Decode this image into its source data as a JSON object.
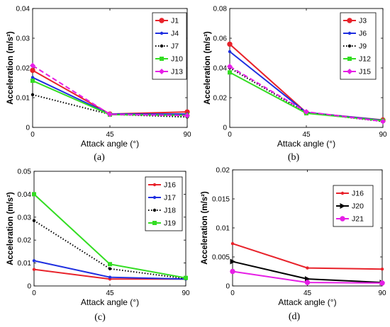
{
  "chart_data": [
    {
      "type": "line",
      "caption": "(a)",
      "xlabel": "Attack angle (°)",
      "ylabel": "Acceleration (m/s²)",
      "x": [
        0,
        45,
        90
      ],
      "xticks": [
        "0",
        "45",
        "90"
      ],
      "ylim": [
        0,
        0.04
      ],
      "yticks": [
        "0",
        "0.01",
        "0.02",
        "0.03",
        "0.04"
      ],
      "legend_position": "top-right",
      "series": [
        {
          "name": "J1",
          "values": [
            0.0192,
            0.0045,
            0.0052
          ],
          "color": "#e8222a",
          "dash": "solid",
          "marker": "circle"
        },
        {
          "name": "J4",
          "values": [
            0.0168,
            0.0045,
            0.0045
          ],
          "color": "#1f2fe0",
          "dash": "solid",
          "marker": "dot"
        },
        {
          "name": "J7",
          "values": [
            0.011,
            0.0044,
            0.0035
          ],
          "color": "#000000",
          "dash": "dot",
          "marker": "dot"
        },
        {
          "name": "J10",
          "values": [
            0.0157,
            0.0043,
            0.0041
          ],
          "color": "#33dd22",
          "dash": "solid",
          "marker": "square"
        },
        {
          "name": "J13",
          "values": [
            0.0208,
            0.0044,
            0.004
          ],
          "color": "#e61ee6",
          "dash": "dash",
          "marker": "diamond"
        }
      ]
    },
    {
      "type": "line",
      "caption": "(b)",
      "xlabel": "Attack angle (°)",
      "ylabel": "Acceleration (m/s²)",
      "x": [
        0,
        45,
        90
      ],
      "xticks": [
        "0",
        "45",
        "90"
      ],
      "ylim": [
        0,
        0.08
      ],
      "yticks": [
        "0",
        "0.02",
        "0.04",
        "0.06",
        "0.08"
      ],
      "legend_position": "top-right",
      "series": [
        {
          "name": "J3",
          "values": [
            0.056,
            0.01,
            0.005
          ],
          "color": "#e8222a",
          "dash": "solid",
          "marker": "circle"
        },
        {
          "name": "J6",
          "values": [
            0.051,
            0.01,
            0.0048
          ],
          "color": "#1f2fe0",
          "dash": "solid",
          "marker": "dot"
        },
        {
          "name": "J9",
          "values": [
            0.04,
            0.01,
            0.004
          ],
          "color": "#000000",
          "dash": "dot",
          "marker": "dot"
        },
        {
          "name": "J12",
          "values": [
            0.037,
            0.0095,
            0.0045
          ],
          "color": "#33dd22",
          "dash": "solid",
          "marker": "square"
        },
        {
          "name": "J15",
          "values": [
            0.041,
            0.0105,
            0.004
          ],
          "color": "#e61ee6",
          "dash": "dash",
          "marker": "diamond"
        }
      ]
    },
    {
      "type": "line",
      "caption": "(c)",
      "xlabel": "Attack angle (°)",
      "ylabel": "Acceleration (m/s²)",
      "x": [
        0,
        45,
        90
      ],
      "xticks": [
        "0",
        "45",
        "90"
      ],
      "ylim": [
        0,
        0.05
      ],
      "yticks": [
        "0",
        "0.01",
        "0.02",
        "0.03",
        "0.04",
        "0.05"
      ],
      "legend_position": "top-right",
      "series": [
        {
          "name": "J16",
          "values": [
            0.0072,
            0.003,
            0.003
          ],
          "color": "#e8222a",
          "dash": "solid",
          "marker": "dot"
        },
        {
          "name": "J17",
          "values": [
            0.011,
            0.0038,
            0.003
          ],
          "color": "#1f2fe0",
          "dash": "solid",
          "marker": "dot"
        },
        {
          "name": "J18",
          "values": [
            0.0285,
            0.0075,
            0.0032
          ],
          "color": "#000000",
          "dash": "dot",
          "marker": "dot"
        },
        {
          "name": "J19",
          "values": [
            0.04,
            0.0095,
            0.0035
          ],
          "color": "#33dd22",
          "dash": "solid",
          "marker": "square"
        }
      ]
    },
    {
      "type": "line",
      "caption": "(d)",
      "xlabel": "Attack angle (°)",
      "ylabel": "Acceleration (m/s²)",
      "x": [
        0,
        45,
        90
      ],
      "xticks": [
        "0",
        "45",
        "90"
      ],
      "ylim": [
        0,
        0.02
      ],
      "yticks": [
        "0",
        "0.005",
        "0.01",
        "0.015",
        "0.02"
      ],
      "legend_position": "top-right",
      "series": [
        {
          "name": "J16",
          "values": [
            0.0073,
            0.0031,
            0.0029
          ],
          "color": "#e8222a",
          "dash": "solid",
          "marker": "dot"
        },
        {
          "name": "J20",
          "values": [
            0.0042,
            0.0012,
            0.0006
          ],
          "color": "#000000",
          "dash": "solid",
          "marker": "triangle"
        },
        {
          "name": "J21",
          "values": [
            0.0025,
            0.0006,
            0.0005
          ],
          "color": "#e61ee6",
          "dash": "solid",
          "marker": "circle"
        }
      ]
    }
  ]
}
